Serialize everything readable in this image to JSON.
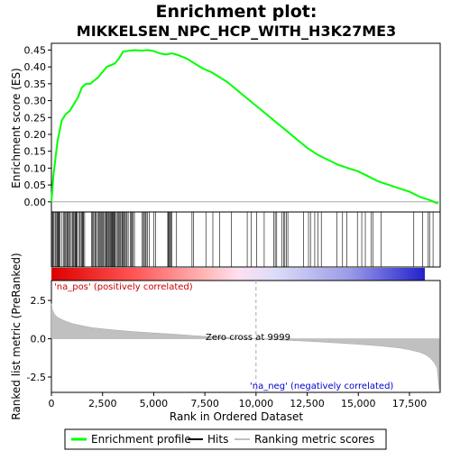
{
  "chart_data": {
    "type": "line",
    "title": "Enrichment plot:",
    "subtitle": "MIKKELSEN_NPC_HCP_WITH_H3K27ME3",
    "top_panel": {
      "ylabel": "Enrichment score (ES)",
      "ylim": [
        -0.03,
        0.47
      ],
      "yticks": [
        "0.00",
        "0.05",
        "0.10",
        "0.15",
        "0.20",
        "0.25",
        "0.30",
        "0.35",
        "0.40",
        "0.45"
      ],
      "series_color": "#00ff00",
      "x": [
        0,
        100,
        200,
        300,
        400,
        500,
        700,
        900,
        1100,
        1300,
        1500,
        1700,
        1900,
        2100,
        2300,
        2500,
        2700,
        2900,
        3100,
        3300,
        3500,
        3800,
        4100,
        4400,
        4700,
        5000,
        5300,
        5600,
        5900,
        6200,
        6600,
        7000,
        7400,
        7800,
        8200,
        8600,
        9000,
        9400,
        9800,
        10200,
        10600,
        11000,
        11500,
        12000,
        12500,
        13000,
        13500,
        14000,
        14500,
        15000,
        15500,
        16000,
        16500,
        17000,
        17500,
        18000,
        18500,
        18900
      ],
      "y": [
        0.0,
        0.08,
        0.13,
        0.18,
        0.21,
        0.24,
        0.26,
        0.27,
        0.29,
        0.31,
        0.34,
        0.35,
        0.35,
        0.36,
        0.37,
        0.385,
        0.4,
        0.405,
        0.41,
        0.425,
        0.445,
        0.448,
        0.45,
        0.448,
        0.45,
        0.447,
        0.44,
        0.437,
        0.44,
        0.435,
        0.425,
        0.41,
        0.395,
        0.385,
        0.37,
        0.355,
        0.335,
        0.315,
        0.295,
        0.275,
        0.255,
        0.235,
        0.21,
        0.185,
        0.16,
        0.14,
        0.125,
        0.11,
        0.1,
        0.09,
        0.075,
        0.06,
        0.05,
        0.04,
        0.03,
        0.015,
        0.005,
        -0.005
      ]
    },
    "hits_panel": {
      "positive_label": "'na_pos' (positively correlated)",
      "negative_label": "'na_neg' (negatively correlated)"
    },
    "bottom_panel": {
      "ylabel": "Ranked list metric (PreRanked)",
      "ylim": [
        -3.5,
        3.8
      ],
      "yticks": [
        "2.5",
        "0.0",
        "-2.5"
      ],
      "zero_cross_label": "Zero cross at 9999",
      "zero_cross": 9999,
      "x": [
        0,
        50,
        150,
        300,
        600,
        1000,
        1500,
        2000,
        3000,
        4000,
        5000,
        6000,
        7000,
        8000,
        9000,
        9999,
        11000,
        12000,
        13000,
        14000,
        15000,
        16000,
        17000,
        17500,
        18000,
        18300,
        18500,
        18700,
        18850,
        18950
      ],
      "y": [
        2.3,
        1.9,
        1.6,
        1.4,
        1.2,
        1.0,
        0.85,
        0.72,
        0.58,
        0.47,
        0.38,
        0.3,
        0.2,
        0.12,
        0.05,
        0.0,
        -0.07,
        -0.13,
        -0.2,
        -0.28,
        -0.36,
        -0.46,
        -0.6,
        -0.72,
        -0.88,
        -1.05,
        -1.25,
        -1.55,
        -1.9,
        -3.3
      ]
    },
    "xlabel": "Rank in Ordered Dataset",
    "xlim": [
      0,
      19000
    ],
    "xticks": [
      "0",
      "2,500",
      "5,000",
      "7,500",
      "10,000",
      "12,500",
      "15,000",
      "17,500"
    ],
    "legend": {
      "placement": "bottom",
      "entries": [
        "Enrichment profile",
        "Hits",
        "Ranking metric scores"
      ]
    }
  }
}
